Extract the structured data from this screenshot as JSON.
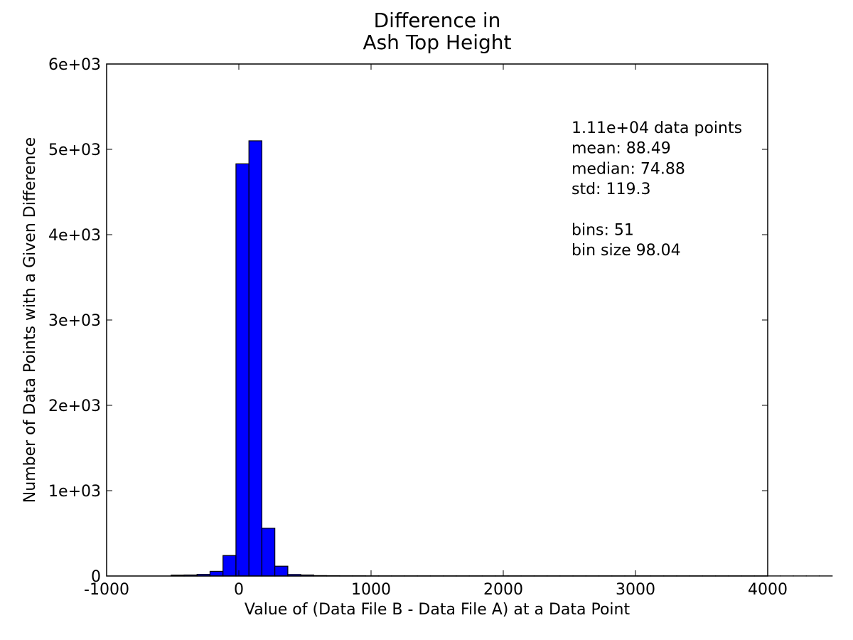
{
  "chart_data": {
    "type": "bar",
    "title_lines": [
      "Difference in",
      "Ash Top Height"
    ],
    "xlabel": "Value of (Data File B - Data File A) at a Data Point",
    "ylabel": "Number of Data Points with a Given Difference",
    "xlim": [
      -1000,
      4000
    ],
    "ylim": [
      0,
      6000
    ],
    "x_ticks": [
      -1000,
      0,
      1000,
      2000,
      3000,
      4000
    ],
    "x_tick_labels": [
      "-1000",
      "0",
      "1000",
      "2000",
      "3000",
      "4000"
    ],
    "y_ticks": [
      0,
      1000,
      2000,
      3000,
      4000,
      5000,
      6000
    ],
    "y_tick_labels": [
      "0",
      "1e+03",
      "2e+03",
      "3e+03",
      "4e+03",
      "5e+03",
      "6e+03"
    ],
    "bar_color": "#0000ff",
    "bin_start": -512,
    "bin_size": 98.04,
    "values": [
      10,
      12,
      20,
      55,
      240,
      4830,
      5100,
      560,
      115,
      18,
      12,
      5,
      3,
      2,
      2,
      1,
      1,
      1,
      1,
      1,
      1,
      1,
      1,
      1,
      1,
      1,
      1,
      1,
      1,
      1,
      1,
      1,
      1,
      1,
      1,
      1,
      1,
      1,
      1,
      1,
      1,
      1,
      1,
      1,
      1,
      1,
      1,
      1,
      1,
      1,
      1
    ],
    "stats_lines": [
      "1.11e+04 data points",
      "mean: 88.49",
      "median: 74.88",
      "std: 119.3",
      "",
      "bins: 51",
      "bin size 98.04"
    ],
    "grid": false
  }
}
